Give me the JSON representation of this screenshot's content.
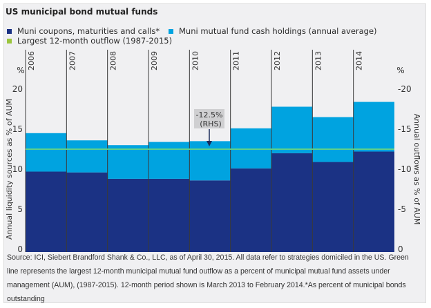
{
  "title": "US municipal bond mutual funds",
  "legend": [
    {
      "label": "Muni coupons, maturities and calls*",
      "color": "#1b3284"
    },
    {
      "label": "Muni mutual fund cash holdings (annual average)",
      "color": "#00a3e0"
    },
    {
      "label": "Largest 12-month outflow (1987-2015)",
      "color": "#9bc53d"
    }
  ],
  "chart_data": {
    "type": "bar",
    "stacked": true,
    "title": "US municipal bond mutual funds",
    "categories": [
      "2006",
      "2007",
      "2008",
      "2009",
      "2010",
      "2011",
      "2012",
      "2013",
      "2014"
    ],
    "series": [
      {
        "name": "Muni coupons, maturities and calls*",
        "color": "#1b3284",
        "values": [
          9.7,
          9.6,
          8.8,
          8.8,
          8.6,
          10.1,
          12.0,
          10.9,
          12.2
        ]
      },
      {
        "name": "Muni mutual fund cash holdings (annual average)",
        "color": "#00a3e0",
        "values": [
          4.8,
          4.0,
          4.2,
          4.6,
          4.9,
          5.0,
          5.8,
          5.6,
          6.2
        ]
      }
    ],
    "reference_line": {
      "name": "Largest 12-month outflow (1987-2015)",
      "value": 12.5,
      "color": "#5fd08a"
    },
    "annotation": {
      "text_line1": "-12.5%",
      "text_line2": "(RHS)",
      "category": "2010"
    },
    "ylabel": "Annual liquidity sources as % of AUM",
    "y2label": "Annual outflows as % of AUM",
    "yunit": "%",
    "y2unit": "%",
    "ylim": [
      0,
      20
    ],
    "yticks": [
      "0",
      "5",
      "10",
      "15",
      "20"
    ],
    "y2ticks": [
      "0",
      "-5",
      "-10",
      "-15",
      "-20"
    ],
    "grid": false,
    "legend_position": "top-left"
  },
  "source_text": "Source: ICI, Siebert Brandford Shank & Co., LLC, as of April 30, 2015. All data refer to strategies domiciled in the US. Green line represents the largest 12-month municipal mutual fund outflow as a percent of municipal mutual fund assets under management (AUM), (1987-2015). 12-month period shown is March 2013 to February 2014.*As percent of municipal bonds outstanding"
}
